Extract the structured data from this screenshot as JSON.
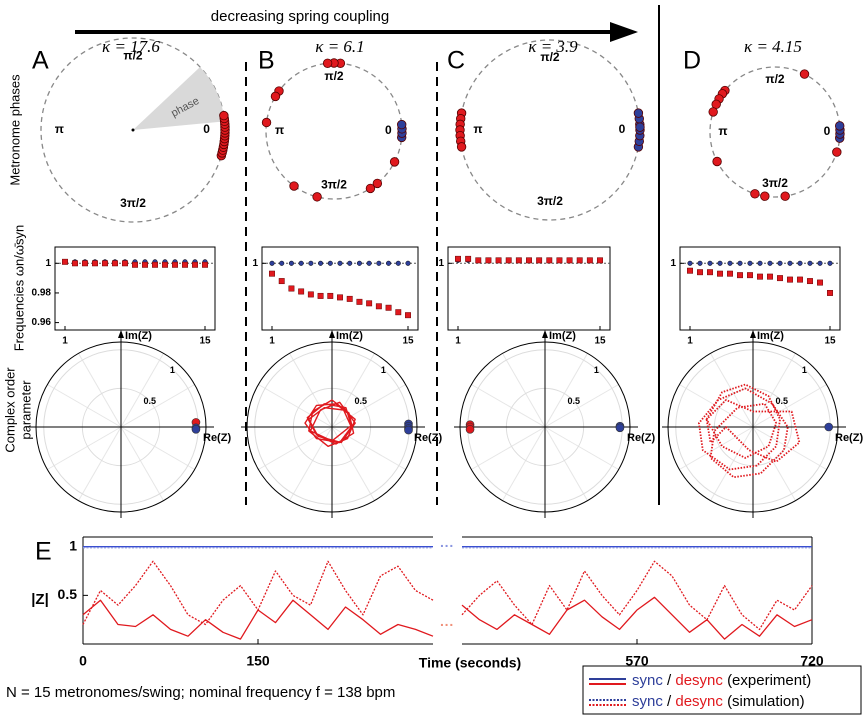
{
  "header": "decreasing spring coupling",
  "row_labels": [
    "Metronome phases",
    "Frequencies ωn/ω̄syn",
    "Complex order",
    "parameter"
  ],
  "footnote": "N = 15 metronomes/swing; nominal frequency f = 138 bpm",
  "legend": {
    "rows": [
      {
        "sync": "sync",
        "sep": "/",
        "desync": "desync",
        "kind": "(experiment)"
      },
      {
        "sync": "sync",
        "sep": "/",
        "desync": "desync",
        "kind": "(simulation)"
      }
    ]
  },
  "chart_data": [
    {
      "type": "phase",
      "panel": "A",
      "kappa": "κ = 17.6",
      "angle_ticks": [
        0,
        {
          "value": 0.5,
          "label": "π/2"
        },
        {
          "value": 1,
          "label": "π"
        },
        {
          "value": 1.5,
          "label": "3π/2"
        }
      ],
      "annotation": "phase",
      "series": [
        {
          "color": "#e0191e",
          "values": [
            -0.09,
            -0.08,
            -0.07,
            -0.06,
            -0.05,
            -0.04,
            -0.03,
            -0.02,
            -0.01,
            0,
            0.01,
            0.02,
            0.03,
            0.04,
            0.05
          ]
        }
      ]
    },
    {
      "type": "phase",
      "panel": "B",
      "kappa": "κ = 6.1",
      "angle_ticks": [
        0,
        {
          "value": 0.5,
          "label": "π/2"
        },
        {
          "value": 1,
          "label": "π"
        },
        {
          "value": 1.5,
          "label": "3π/2"
        }
      ],
      "series": [
        {
          "color": "#2e3f9a",
          "values": [
            -0.03,
            -0.01,
            0.01,
            0.03
          ]
        },
        {
          "color": "#e0191e",
          "values": [
            0.47,
            0.5,
            0.53,
            0.8,
            0.83,
            0.96,
            1.3,
            1.42,
            1.68,
            1.72,
            1.85
          ]
        }
      ]
    },
    {
      "type": "phase",
      "panel": "C",
      "kappa": "κ = 3.9",
      "angle_ticks": [
        0,
        {
          "value": 0.5,
          "label": "π/2"
        },
        {
          "value": 1,
          "label": "π"
        },
        {
          "value": 1.5,
          "label": "3π/2"
        }
      ],
      "series": [
        {
          "color": "#2e3f9a",
          "values": [
            -0.06,
            -0.04,
            -0.02,
            0,
            0.02,
            0.04,
            0.06,
            0.01
          ]
        },
        {
          "color": "#e0191e",
          "values": [
            0.94,
            0.96,
            0.98,
            1,
            1.02,
            1.04,
            1.06
          ]
        }
      ]
    },
    {
      "type": "phase",
      "panel": "D",
      "kappa": "κ = 4.15",
      "angle_ticks": [
        0,
        {
          "value": 0.5,
          "label": "π/2"
        },
        {
          "value": 1,
          "label": "π"
        },
        {
          "value": 1.5,
          "label": "3π/2"
        }
      ],
      "series": [
        {
          "color": "#2e3f9a",
          "values": [
            -0.03,
            -0.01,
            0.01,
            0.03
          ]
        },
        {
          "color": "#e0191e",
          "values": [
            0.35,
            0.78,
            0.8,
            0.83,
            0.86,
            0.9,
            1.15,
            1.4,
            1.45,
            1.55,
            1.9
          ]
        }
      ]
    },
    {
      "type": "freq",
      "x": [
        1,
        2,
        3,
        4,
        5,
        6,
        7,
        8,
        9,
        10,
        11,
        12,
        13,
        14,
        15
      ],
      "xticks": [
        1,
        15
      ],
      "ylim": [
        0.955,
        1.011
      ],
      "yticks": [
        0.96,
        0.98,
        1
      ],
      "ref": 1,
      "series": [
        {
          "color": "#2e3f9a",
          "marker": "circle",
          "values": [
            1.001,
            1.001,
            1.001,
            1.001,
            1.001,
            1.001,
            1.001,
            1.001,
            1.001,
            1.001,
            1.001,
            1.001,
            1.001,
            1.001,
            1.001
          ]
        },
        {
          "color": "#e0191e",
          "marker": "square",
          "values": [
            1.001,
            1,
            1,
            1,
            1,
            1,
            1,
            0.999,
            0.999,
            0.999,
            0.999,
            0.999,
            0.999,
            0.999,
            0.999
          ]
        }
      ]
    },
    {
      "type": "freq",
      "x": [
        1,
        2,
        3,
        4,
        5,
        6,
        7,
        8,
        9,
        10,
        11,
        12,
        13,
        14,
        15
      ],
      "xticks": [
        1,
        15
      ],
      "ylim": [
        0.955,
        1.011
      ],
      "yticks": [
        1
      ],
      "ref": 1,
      "series": [
        {
          "color": "#2e3f9a",
          "marker": "circle",
          "values": [
            1,
            1,
            1,
            1,
            1,
            1,
            1,
            1,
            1,
            1,
            1,
            1,
            1,
            1,
            1
          ]
        },
        {
          "color": "#e0191e",
          "marker": "square",
          "values": [
            0.993,
            0.988,
            0.983,
            0.981,
            0.979,
            0.978,
            0.978,
            0.977,
            0.976,
            0.974,
            0.973,
            0.971,
            0.97,
            0.967,
            0.965
          ]
        }
      ]
    },
    {
      "type": "freq",
      "x": [
        1,
        2,
        3,
        4,
        5,
        6,
        7,
        8,
        9,
        10,
        11,
        12,
        13,
        14,
        15
      ],
      "xticks": [
        1,
        15
      ],
      "ylim": [
        0.955,
        1.011
      ],
      "yticks": [
        1
      ],
      "ref": 1,
      "series": [
        {
          "color": "#2e3f9a",
          "marker": "circle",
          "values": [
            1.002,
            1.002,
            1.002,
            1.002,
            1.002,
            1.002,
            1.002,
            1.002,
            1.002,
            1.002,
            1.002,
            1.002,
            1.002,
            1.002,
            1.002
          ]
        },
        {
          "color": "#e0191e",
          "marker": "square",
          "values": [
            1.003,
            1.003,
            1.002,
            1.002,
            1.002,
            1.002,
            1.002,
            1.002,
            1.002,
            1.002,
            1.002,
            1.002,
            1.002,
            1.002,
            1.002
          ]
        }
      ]
    },
    {
      "type": "freq",
      "x": [
        1,
        2,
        3,
        4,
        5,
        6,
        7,
        8,
        9,
        10,
        11,
        12,
        13,
        14,
        15
      ],
      "xticks": [
        1,
        15
      ],
      "ylim": [
        0.955,
        1.011
      ],
      "yticks": [
        1
      ],
      "ref": 1,
      "series": [
        {
          "color": "#2e3f9a",
          "marker": "circle",
          "values": [
            1,
            1,
            1,
            1,
            1,
            1,
            1,
            1,
            1,
            1,
            1,
            1,
            1,
            1,
            1
          ]
        },
        {
          "color": "#e0191e",
          "marker": "square",
          "values": [
            0.995,
            0.994,
            0.994,
            0.993,
            0.993,
            0.992,
            0.992,
            0.991,
            0.991,
            0.99,
            0.989,
            0.989,
            0.988,
            0.987,
            0.98
          ]
        }
      ]
    },
    {
      "type": "order",
      "xlabel": "Re(Z)",
      "ylabel": "Im(Z)",
      "rlim": [
        0,
        1.1
      ],
      "rticks": [
        0.5,
        1
      ],
      "series": [
        {
          "color": "#e0191e",
          "style": "point",
          "re": [
            0.97
          ],
          "im": [
            0.06
          ]
        },
        {
          "color": "#2e3f9a",
          "style": "point",
          "re": [
            0.97,
            0.97
          ],
          "im": [
            -0.01,
            -0.03
          ]
        }
      ]
    },
    {
      "type": "order",
      "xlabel": "Re(Z)",
      "ylabel": "Im(Z)",
      "rlim": [
        0,
        1.1
      ],
      "rticks": [
        0.5,
        1
      ],
      "series": [
        {
          "color": "#e0191e",
          "style": "line",
          "re": [
            -0.3,
            -0.1,
            0.15,
            0.25,
            0.1,
            -0.2,
            -0.35,
            -0.2,
            0.05,
            0.3,
            0.2,
            -0.05,
            -0.3,
            -0.25,
            0.0,
            0.22,
            0.28,
            0.05,
            -0.2,
            -0.32,
            -0.1,
            0.18,
            0.25,
            0.0,
            -0.28,
            -0.15,
            0.1,
            0.3,
            0.12,
            -0.18
          ],
          "im": [
            0.1,
            0.25,
            0.22,
            0.0,
            -0.2,
            -0.15,
            0.05,
            0.28,
            0.3,
            0.1,
            -0.15,
            -0.25,
            -0.05,
            0.2,
            0.35,
            0.18,
            -0.08,
            -0.22,
            -0.1,
            0.12,
            0.3,
            0.25,
            0.02,
            -0.18,
            -0.05,
            0.22,
            0.32,
            0.05,
            -0.2,
            -0.12
          ]
        },
        {
          "color": "#2e3f9a",
          "style": "point",
          "re": [
            0.99,
            0.99,
            0.99,
            0.99
          ],
          "im": [
            0.04,
            0.01,
            -0.02,
            -0.04
          ]
        }
      ]
    },
    {
      "type": "order",
      "xlabel": "Re(Z)",
      "ylabel": "Im(Z)",
      "rlim": [
        0,
        1.1
      ],
      "rticks": [
        0.5,
        1
      ],
      "series": [
        {
          "color": "#e0191e",
          "style": "point",
          "re": [
            -0.97,
            -0.97,
            -0.97
          ],
          "im": [
            0.03,
            0.0,
            -0.03
          ]
        },
        {
          "color": "#2e3f9a",
          "style": "point",
          "re": [
            0.97,
            0.97
          ],
          "im": [
            0.01,
            -0.01
          ]
        }
      ]
    },
    {
      "type": "order",
      "xlabel": "Re(Z)",
      "ylabel": "Im(Z)",
      "rlim": [
        0,
        1.1
      ],
      "rticks": [
        0.5,
        1
      ],
      "series": [
        {
          "color": "#e0191e",
          "style": "dotted",
          "re": [
            -0.6,
            -0.4,
            -0.1,
            0.2,
            0.35,
            0.3,
            0.05,
            -0.3,
            -0.65,
            -0.7,
            -0.45,
            -0.1,
            0.25,
            0.45,
            0.4,
            0.1,
            -0.25,
            -0.55,
            -0.5,
            -0.2,
            0.15,
            0.3,
            0.2,
            -0.1,
            -0.4,
            -0.6,
            -0.35,
            0.0,
            0.5,
            0.6,
            0.3,
            -0.05,
            -0.35,
            -0.55
          ],
          "im": [
            0.1,
            0.45,
            0.55,
            0.4,
            0.1,
            -0.25,
            -0.5,
            -0.55,
            -0.3,
            0.05,
            0.35,
            0.5,
            0.3,
            0.0,
            -0.3,
            -0.6,
            -0.65,
            -0.4,
            -0.05,
            0.25,
            0.3,
            0.05,
            -0.25,
            -0.4,
            -0.25,
            0.1,
            0.35,
            0.2,
            0.2,
            -0.2,
            -0.45,
            -0.3,
            0.0,
            -0.2
          ]
        },
        {
          "color": "#2e3f9a",
          "style": "point",
          "re": [
            0.98
          ],
          "im": [
            0.0
          ]
        }
      ]
    },
    {
      "type": "timeseries",
      "panel": "E",
      "xlabel": "Time (seconds)",
      "ylabel": "|Z|",
      "xlim": [
        0,
        720
      ],
      "xbreak": [
        300,
        420
      ],
      "xticks": [
        0,
        150,
        570,
        720
      ],
      "ylim": [
        0,
        1.1
      ],
      "yticks": [
        0.5,
        1
      ],
      "x": [
        0,
        15,
        30,
        45,
        60,
        75,
        90,
        105,
        120,
        135,
        150,
        165,
        180,
        195,
        210,
        225,
        240,
        255,
        270,
        285,
        300,
        360,
        420,
        435,
        450,
        465,
        480,
        495,
        510,
        525,
        540,
        555,
        570,
        585,
        600,
        615,
        630,
        645,
        660,
        675,
        690,
        705,
        720
      ],
      "series": [
        {
          "color": "#3a4fd0",
          "style": "solid",
          "values": [
            1,
            1,
            1,
            1,
            1,
            1,
            1,
            1,
            1,
            1,
            1,
            1,
            1,
            1,
            1,
            1,
            1,
            1,
            1,
            1,
            1,
            null,
            1,
            1,
            1,
            1,
            1,
            1,
            1,
            1,
            1,
            1,
            1,
            1,
            1,
            1,
            1,
            1,
            1,
            1,
            1,
            1,
            1
          ]
        },
        {
          "color": "#8a96e0",
          "style": "dotted",
          "values": [
            0.99,
            0.99,
            0.99,
            0.99,
            0.99,
            0.99,
            0.99,
            0.99,
            0.99,
            0.99,
            0.99,
            0.99,
            0.99,
            0.99,
            0.99,
            0.99,
            0.99,
            0.99,
            0.99,
            0.99,
            0.99,
            null,
            0.99,
            0.99,
            0.99,
            0.99,
            0.99,
            0.99,
            0.99,
            0.99,
            0.99,
            0.99,
            0.99,
            0.99,
            0.99,
            0.99,
            0.99,
            0.99,
            0.99,
            0.99,
            0.99,
            0.99,
            0.99
          ]
        },
        {
          "color": "#e0191e",
          "style": "solid",
          "values": [
            0.3,
            0.45,
            0.2,
            0.18,
            0.3,
            0.15,
            0.08,
            0.25,
            0.12,
            0.05,
            0.35,
            0.22,
            0.45,
            0.3,
            0.15,
            0.38,
            0.25,
            0.1,
            0.2,
            0.15,
            0.08,
            null,
            0.4,
            0.25,
            0.15,
            0.3,
            0.2,
            0.1,
            0.35,
            0.45,
            0.28,
            0.15,
            0.35,
            0.48,
            0.3,
            0.12,
            0.25,
            0.05,
            0.2,
            0.08,
            0.3,
            0.18,
            0.25
          ]
        },
        {
          "color": "#e0191e",
          "style": "dotted",
          "values": [
            0.2,
            0.55,
            0.4,
            0.6,
            0.85,
            0.6,
            0.3,
            0.2,
            0.45,
            0.6,
            0.35,
            0.75,
            0.5,
            0.4,
            0.85,
            0.55,
            0.3,
            0.7,
            0.8,
            0.55,
            0.45,
            null,
            0.3,
            0.5,
            0.65,
            0.4,
            0.2,
            0.6,
            0.35,
            0.75,
            0.5,
            0.3,
            0.55,
            0.85,
            0.7,
            0.4,
            0.25,
            0.6,
            0.3,
            0.15,
            0.45,
            0.35,
            0.6
          ]
        }
      ]
    }
  ]
}
